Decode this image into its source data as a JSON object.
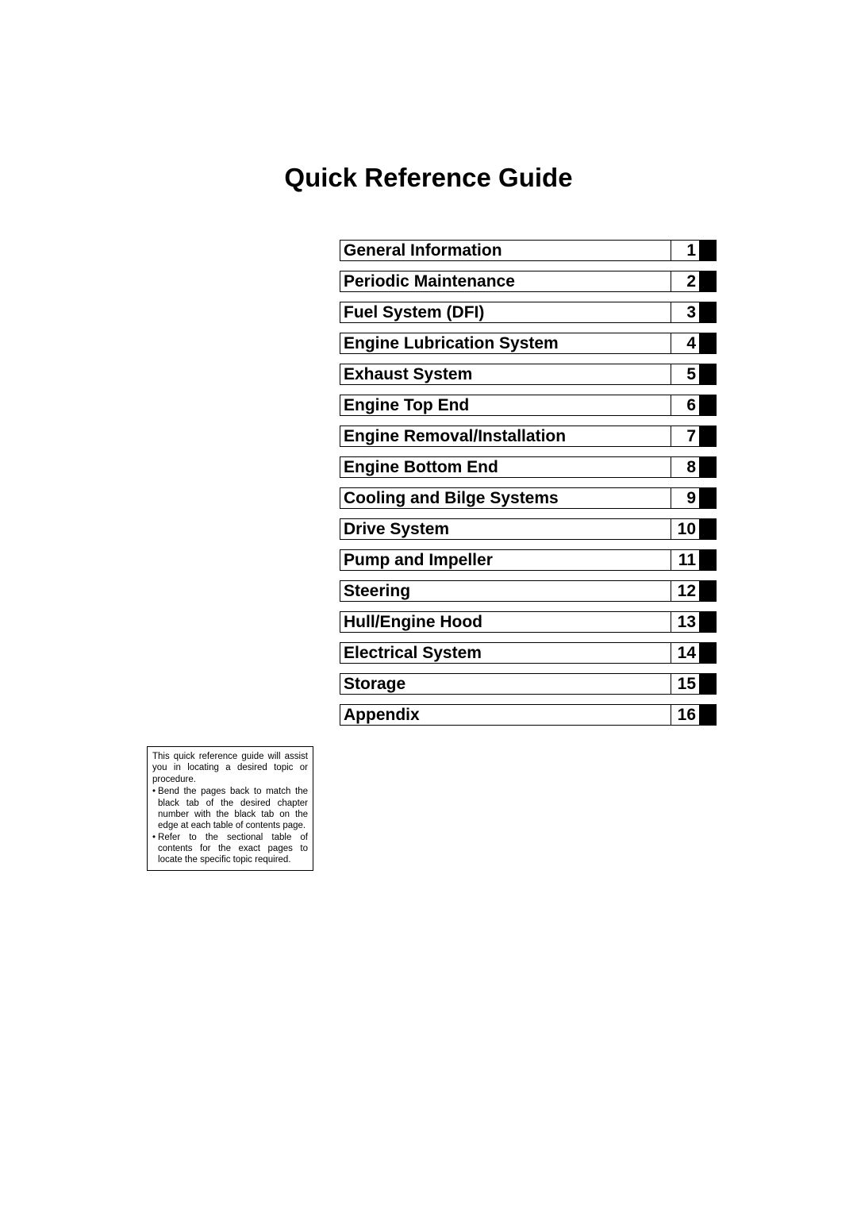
{
  "title": "Quick Reference Guide",
  "toc": [
    {
      "label": "General Information",
      "num": "1"
    },
    {
      "label": "Periodic Maintenance",
      "num": "2"
    },
    {
      "label": "Fuel System (DFI)",
      "num": "3"
    },
    {
      "label": "Engine Lubrication System",
      "num": "4"
    },
    {
      "label": "Exhaust System",
      "num": "5"
    },
    {
      "label": "Engine Top End",
      "num": "6"
    },
    {
      "label": "Engine Removal/Installation",
      "num": "7"
    },
    {
      "label": "Engine Bottom End",
      "num": "8"
    },
    {
      "label": "Cooling and Bilge Systems",
      "num": "9"
    },
    {
      "label": "Drive System",
      "num": "10"
    },
    {
      "label": "Pump and Impeller",
      "num": "11"
    },
    {
      "label": "Steering",
      "num": "12"
    },
    {
      "label": "Hull/Engine Hood",
      "num": "13"
    },
    {
      "label": "Electrical System",
      "num": "14"
    },
    {
      "label": "Storage",
      "num": "15"
    },
    {
      "label": "Appendix",
      "num": "16"
    }
  ],
  "note": {
    "intro": "This quick reference guide will assist you in locating a desired topic or procedure.",
    "bullets": [
      "Bend the pages back to match the black tab of the desired chapter number with the black tab on the edge at each table of contents page.",
      "Refer to the sectional table of contents for the exact pages to locate the specific topic required."
    ]
  },
  "style": {
    "page_bg": "#ffffff",
    "text_color": "#000000",
    "tab_color": "#000000",
    "border_color": "#000000",
    "title_fontsize": 33,
    "toc_fontsize": 21,
    "note_fontsize": 11.5,
    "toc_row_height": 27,
    "toc_row_gap": 12
  }
}
